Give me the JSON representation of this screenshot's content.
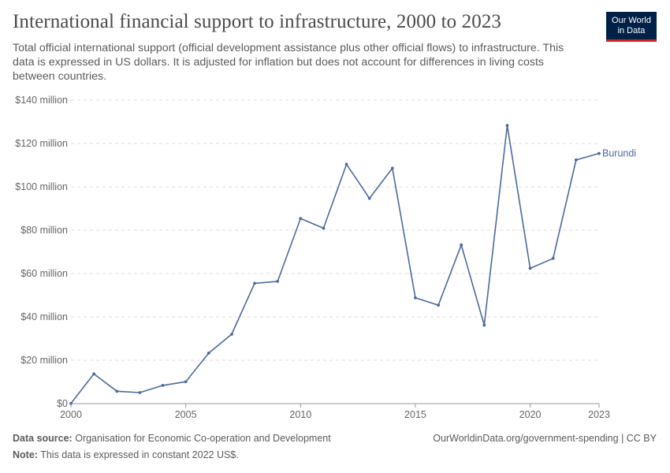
{
  "header": {
    "title": "International financial support to infrastructure, 2000 to 2023",
    "subtitle": "Total official international support (official development assistance plus other official flows) to infrastructure. This data is expressed in US dollars. It is adjusted for inflation but does not account for differences in living costs between countries.",
    "logo_line1": "Our World",
    "logo_line2": "in Data"
  },
  "footer": {
    "source_label": "Data source:",
    "source_text": "Organisation for Economic Co-operation and Development",
    "note_label": "Note:",
    "note_text": "This data is expressed in constant 2022 US$.",
    "url_text": "OurWorldinData.org/government-spending | CC BY"
  },
  "colors": {
    "series": "#4c6a9c",
    "grid": "#dddddd",
    "axis": "#999999"
  },
  "chart_data": {
    "type": "line",
    "title": "International financial support to infrastructure, 2000 to 2023",
    "xlim": [
      2000,
      2023
    ],
    "ylim": [
      0,
      140
    ],
    "x_ticks": [
      2000,
      2005,
      2010,
      2015,
      2020,
      2023
    ],
    "x_tick_labels": [
      "2000",
      "2005",
      "2010",
      "2015",
      "2020",
      "2023"
    ],
    "y_ticks": [
      0,
      20,
      40,
      60,
      80,
      100,
      120,
      140
    ],
    "y_tick_labels": [
      "$0",
      "$20 million",
      "$40 million",
      "$60 million",
      "$80 million",
      "$100 million",
      "$120 million",
      "$140 million"
    ],
    "grid": "horizontal dashed",
    "legend": "inline label at end of line",
    "x": [
      2000,
      2001,
      2002,
      2003,
      2004,
      2005,
      2006,
      2007,
      2008,
      2009,
      2010,
      2011,
      2012,
      2013,
      2014,
      2015,
      2016,
      2017,
      2018,
      2019,
      2020,
      2021,
      2022,
      2023
    ],
    "series": [
      {
        "name": "Burundi",
        "values": [
          0.1,
          13.7,
          5.7,
          5.1,
          8.4,
          10.1,
          23.3,
          32.0,
          55.5,
          56.4,
          85.4,
          80.9,
          110.4,
          94.7,
          108.6,
          48.8,
          45.4,
          73.2,
          36.2,
          128.3,
          62.4,
          67.0,
          112.4,
          115.4
        ]
      }
    ]
  }
}
